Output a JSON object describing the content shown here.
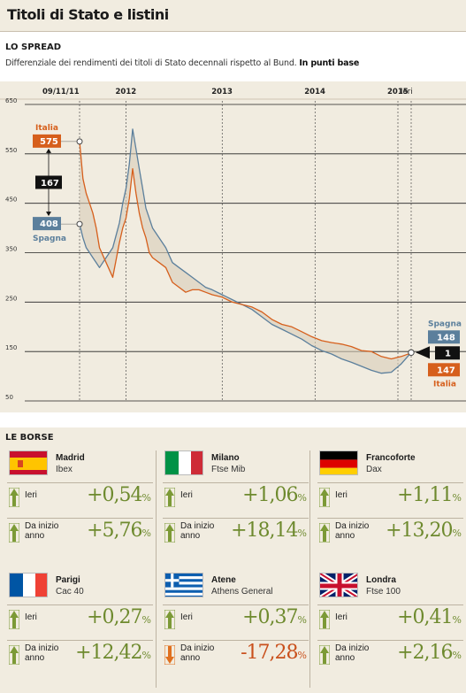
{
  "header": {
    "title": "Titoli di Stato e listini"
  },
  "spread": {
    "heading": "LO SPREAD",
    "subtitle": "Differenziale dei rendimenti dei titoli di Stato decennali rispetto al Bund.",
    "subtitle_bold": "In punti base"
  },
  "chart_data": {
    "type": "line",
    "yticks": [
      50,
      150,
      250,
      350,
      450,
      550,
      650
    ],
    "ylim": [
      50,
      650
    ],
    "xlabels": [
      {
        "label": "09/11/11",
        "t": 0.0
      },
      {
        "label": "2012",
        "t": 0.14
      },
      {
        "label": "2013",
        "t": 0.43
      },
      {
        "label": "2014",
        "t": 0.71
      },
      {
        "label": "2015",
        "t": 0.96
      },
      {
        "label": "Ieri",
        "t": 1.0
      }
    ],
    "colors": {
      "italia": "#d65f1c",
      "spagna": "#5b7f9c",
      "diff": "#111111",
      "grid": "#222222",
      "fill": "#d9cdb8"
    },
    "series": [
      {
        "name": "Italia",
        "x": [
          0.0,
          0.01,
          0.02,
          0.03,
          0.04,
          0.05,
          0.06,
          0.08,
          0.1,
          0.12,
          0.13,
          0.14,
          0.15,
          0.16,
          0.17,
          0.18,
          0.19,
          0.2,
          0.21,
          0.22,
          0.24,
          0.26,
          0.28,
          0.3,
          0.32,
          0.34,
          0.36,
          0.38,
          0.4,
          0.43,
          0.46,
          0.49,
          0.52,
          0.55,
          0.58,
          0.61,
          0.64,
          0.67,
          0.7,
          0.73,
          0.76,
          0.79,
          0.82,
          0.85,
          0.88,
          0.91,
          0.94,
          0.97,
          1.0
        ],
        "values": [
          575,
          500,
          470,
          450,
          430,
          400,
          360,
          330,
          300,
          370,
          400,
          420,
          460,
          520,
          470,
          430,
          400,
          380,
          350,
          340,
          330,
          320,
          290,
          280,
          270,
          275,
          275,
          270,
          265,
          260,
          250,
          245,
          240,
          230,
          215,
          205,
          200,
          190,
          180,
          172,
          168,
          165,
          160,
          152,
          150,
          140,
          135,
          140,
          147
        ]
      },
      {
        "name": "Spagna",
        "x": [
          0.0,
          0.01,
          0.02,
          0.03,
          0.04,
          0.05,
          0.06,
          0.08,
          0.1,
          0.12,
          0.13,
          0.14,
          0.15,
          0.16,
          0.17,
          0.18,
          0.19,
          0.2,
          0.21,
          0.22,
          0.24,
          0.26,
          0.28,
          0.3,
          0.32,
          0.34,
          0.36,
          0.38,
          0.4,
          0.43,
          0.46,
          0.49,
          0.52,
          0.55,
          0.58,
          0.61,
          0.64,
          0.67,
          0.7,
          0.73,
          0.76,
          0.79,
          0.82,
          0.85,
          0.88,
          0.91,
          0.94,
          0.97,
          1.0
        ],
        "values": [
          408,
          380,
          360,
          350,
          340,
          330,
          320,
          340,
          360,
          410,
          450,
          480,
          530,
          600,
          560,
          520,
          480,
          440,
          420,
          400,
          380,
          360,
          330,
          320,
          310,
          300,
          290,
          280,
          275,
          265,
          255,
          245,
          235,
          220,
          205,
          195,
          185,
          175,
          162,
          152,
          145,
          135,
          128,
          120,
          112,
          106,
          108,
          125,
          148
        ]
      }
    ],
    "labels": {
      "italia": "Italia",
      "spagna": "Spagna",
      "start_italia": "575",
      "start_spagna": "408",
      "start_diff": "167",
      "end_spagna": "148",
      "end_italia": "147",
      "end_diff": "1"
    }
  },
  "borse": {
    "heading": "LE BORSE",
    "label_ieri": "Ieri",
    "label_da_inizio": "Da inizio",
    "label_anno": "anno",
    "pct": "%",
    "cards": [
      {
        "city": "Madrid",
        "index": "Ibex",
        "ieri": "+0,54",
        "anno": "+5,76",
        "anno_dir": "up"
      },
      {
        "city": "Milano",
        "index": "Ftse Mib",
        "ieri": "+1,06",
        "anno": "+18,14",
        "anno_dir": "up"
      },
      {
        "city": "Francoforte",
        "index": "Dax",
        "ieri": "+1,11",
        "anno": "+13,20",
        "anno_dir": "up"
      },
      {
        "city": "Parigi",
        "index": "Cac 40",
        "ieri": "+0,27",
        "anno": "+12,42",
        "anno_dir": "up"
      },
      {
        "city": "Atene",
        "index": "Athens General",
        "ieri": "+0,37",
        "anno": "-17,28",
        "anno_dir": "down"
      },
      {
        "city": "Londra",
        "index": "Ftse 100",
        "ieri": "+0,41",
        "anno": "+2,16",
        "anno_dir": "up"
      }
    ]
  }
}
